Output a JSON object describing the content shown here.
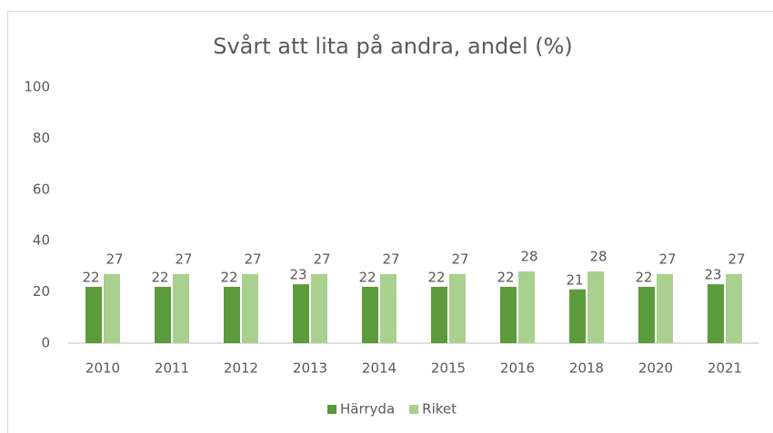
{
  "chart_data": {
    "type": "bar",
    "title": "Svårt att lita på andra, andel (%)",
    "categories": [
      "2010",
      "2011",
      "2012",
      "2013",
      "2014",
      "2015",
      "2016",
      "2018",
      "2020",
      "2021"
    ],
    "series": [
      {
        "name": "Härryda",
        "color": "#5b9b3c",
        "values": [
          22,
          22,
          22,
          23,
          22,
          22,
          22,
          21,
          22,
          23
        ]
      },
      {
        "name": "Riket",
        "color": "#a9d08e",
        "values": [
          27,
          27,
          27,
          27,
          27,
          27,
          28,
          28,
          27,
          27
        ]
      }
    ],
    "ylim": [
      0,
      100
    ],
    "yticks": [
      0,
      20,
      40,
      60,
      80,
      100
    ],
    "grid": false,
    "legend": "bottom"
  }
}
